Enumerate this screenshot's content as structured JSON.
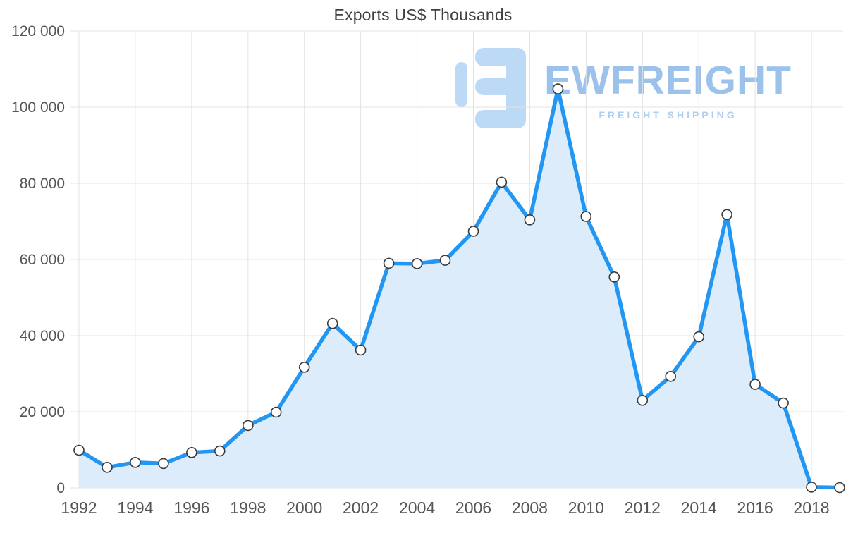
{
  "chart_data": {
    "type": "area",
    "title": "Exports US$ Thousands",
    "x": [
      1992,
      1993,
      1994,
      1995,
      1996,
      1997,
      1998,
      1999,
      2000,
      2001,
      2002,
      2003,
      2004,
      2005,
      2006,
      2007,
      2008,
      2009,
      2010,
      2011,
      2012,
      2013,
      2014,
      2015,
      2016,
      2017,
      2018,
      2019
    ],
    "values": [
      9900,
      5400,
      6700,
      6400,
      9300,
      9700,
      16400,
      19900,
      31700,
      43200,
      36200,
      59000,
      58900,
      59800,
      67400,
      80300,
      70400,
      104800,
      71300,
      55400,
      23000,
      29300,
      39700,
      71800,
      27200,
      22300,
      200,
      100
    ],
    "ylim": [
      0,
      120000
    ],
    "yticks": [
      0,
      20000,
      40000,
      60000,
      80000,
      100000,
      120000
    ],
    "ytick_labels": [
      "0",
      "20 000",
      "40 000",
      "60 000",
      "80 000",
      "100 000",
      "120 000"
    ],
    "xticks": [
      1992,
      1994,
      1996,
      1998,
      2000,
      2002,
      2004,
      2006,
      2008,
      2010,
      2012,
      2014,
      2016,
      2018
    ],
    "grid": true,
    "legend": false,
    "line_color": "#2196f3",
    "area_color": "#dcecfa",
    "marker_fill": "#ffffff",
    "marker_stroke": "#3a3a3a",
    "grid_color": "#e3e3e3",
    "axis_label_color": "#555555"
  },
  "watermark": {
    "brand": "EWFREIGHT",
    "tagline": "FREIGHT SHIPPING",
    "logo_color": "#bcd9f5"
  }
}
